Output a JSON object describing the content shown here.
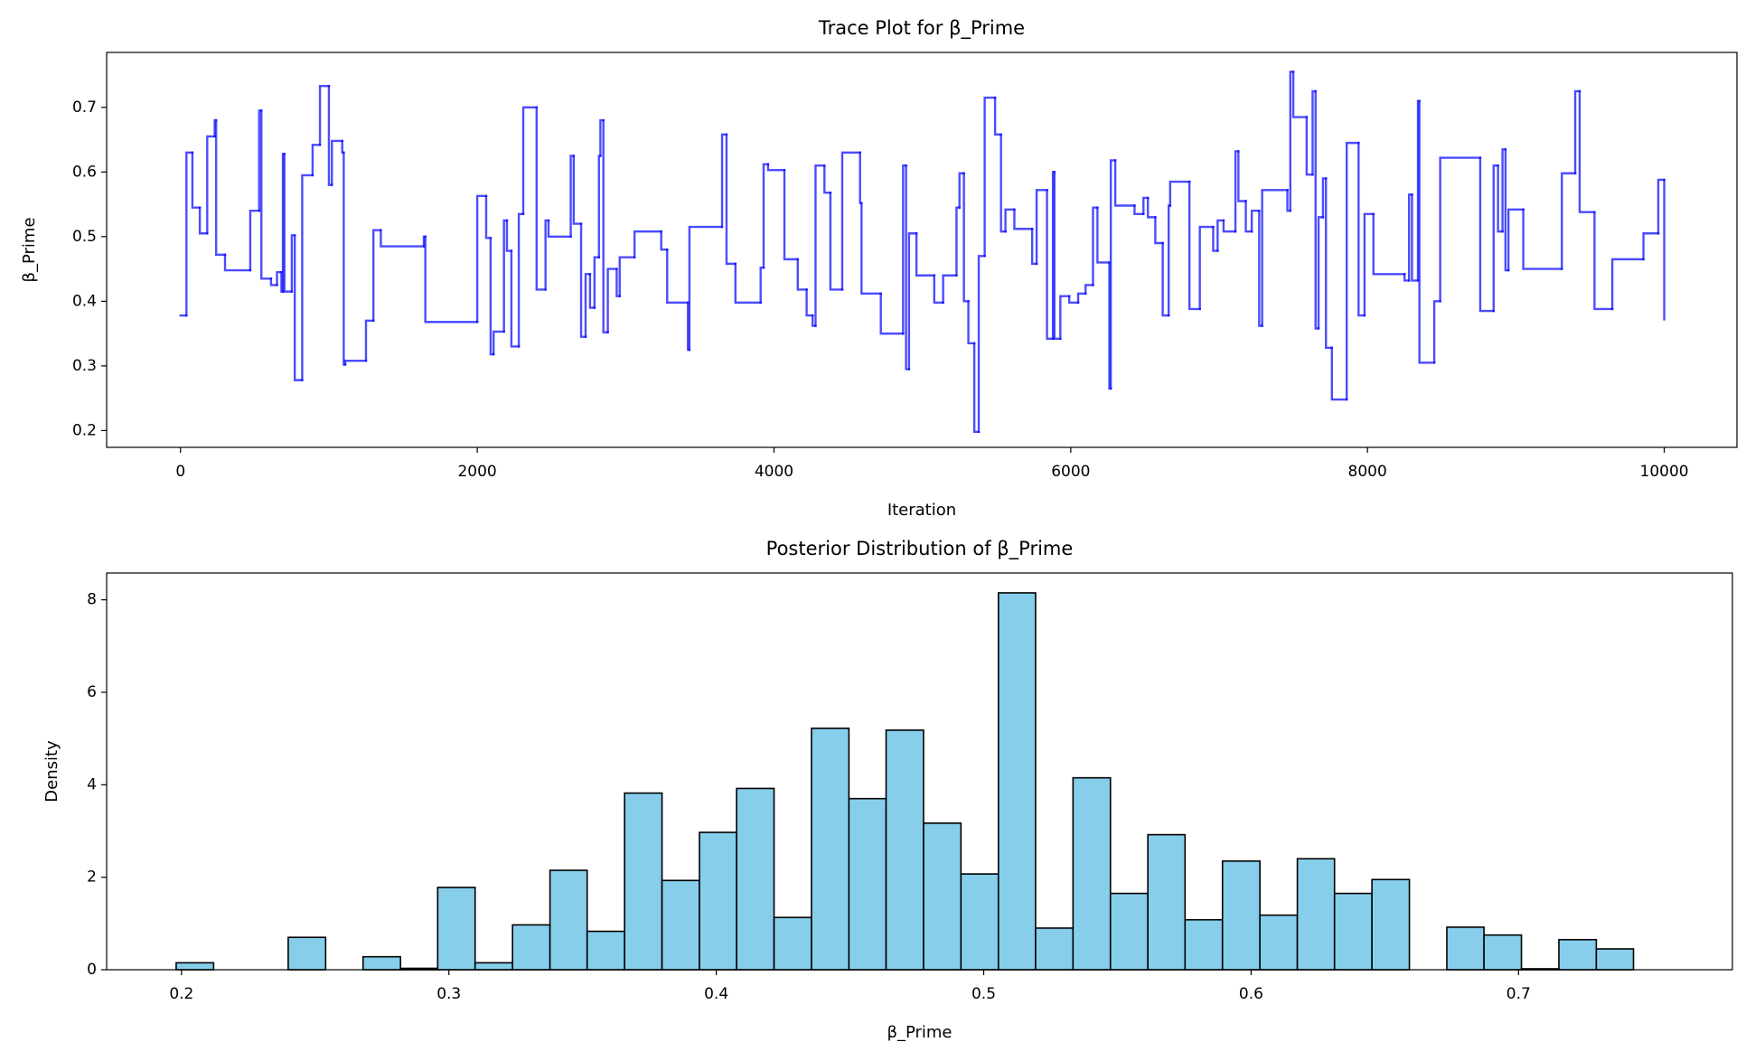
{
  "chart_data": [
    {
      "type": "line",
      "title": "Trace Plot for β_Prime",
      "xlabel": "Iteration",
      "ylabel": "β_Prime",
      "drawstyle": "steps-post",
      "color": "#0000ff",
      "alpha": 0.7,
      "xlim": [
        -498,
        10490
      ],
      "ylim": [
        0.174,
        0.785
      ],
      "xticks": [
        0,
        2000,
        4000,
        6000,
        8000,
        10000
      ],
      "yticks": [
        0.2,
        0.3,
        0.4,
        0.5,
        0.6,
        0.7
      ],
      "x": [
        0,
        40,
        80,
        130,
        180,
        230,
        240,
        300,
        470,
        530,
        545,
        610,
        650,
        680,
        690,
        700,
        750,
        770,
        820,
        890,
        940,
        1000,
        1020,
        1090,
        1100,
        1110,
        1250,
        1300,
        1350,
        1640,
        1650,
        2000,
        2060,
        2090,
        2110,
        2180,
        2200,
        2230,
        2280,
        2310,
        2400,
        2460,
        2480,
        2630,
        2650,
        2700,
        2730,
        2760,
        2790,
        2820,
        2830,
        2850,
        2880,
        2940,
        2960,
        3060,
        3240,
        3280,
        3420,
        3430,
        3650,
        3680,
        3740,
        3910,
        3930,
        3960,
        4070,
        4160,
        4220,
        4260,
        4280,
        4340,
        4380,
        4460,
        4580,
        4590,
        4720,
        4870,
        4890,
        4910,
        4960,
        5080,
        5140,
        5230,
        5250,
        5280,
        5310,
        5350,
        5380,
        5420,
        5490,
        5530,
        5560,
        5620,
        5740,
        5770,
        5840,
        5880,
        5890,
        5930,
        5990,
        6050,
        6100,
        6150,
        6180,
        6260,
        6270,
        6300,
        6430,
        6490,
        6520,
        6570,
        6620,
        6660,
        6670,
        6800,
        6870,
        6960,
        6990,
        7030,
        7110,
        7130,
        7180,
        7220,
        7270,
        7290,
        7460,
        7480,
        7500,
        7590,
        7630,
        7650,
        7670,
        7700,
        7720,
        7760,
        7860,
        7940,
        7980,
        8040,
        8250,
        8280,
        8300,
        8340,
        8350,
        8450,
        8490,
        8760,
        8850,
        8880,
        8910,
        8930,
        8950,
        9050,
        9310,
        9400,
        9430,
        9530,
        9650,
        9860,
        9960,
        10000
      ],
      "values": [
        0.378,
        0.63,
        0.545,
        0.505,
        0.655,
        0.68,
        0.472,
        0.448,
        0.54,
        0.695,
        0.435,
        0.425,
        0.445,
        0.415,
        0.628,
        0.415,
        0.502,
        0.278,
        0.595,
        0.642,
        0.733,
        0.58,
        0.648,
        0.63,
        0.302,
        0.308,
        0.37,
        0.51,
        0.485,
        0.5,
        0.368,
        0.563,
        0.498,
        0.318,
        0.353,
        0.525,
        0.478,
        0.33,
        0.535,
        0.7,
        0.418,
        0.525,
        0.5,
        0.625,
        0.52,
        0.345,
        0.442,
        0.39,
        0.468,
        0.625,
        0.68,
        0.352,
        0.45,
        0.408,
        0.468,
        0.508,
        0.48,
        0.398,
        0.325,
        0.515,
        0.658,
        0.458,
        0.398,
        0.452,
        0.612,
        0.603,
        0.465,
        0.418,
        0.378,
        0.362,
        0.61,
        0.568,
        0.418,
        0.63,
        0.552,
        0.412,
        0.35,
        0.61,
        0.295,
        0.505,
        0.44,
        0.398,
        0.44,
        0.545,
        0.598,
        0.4,
        0.335,
        0.198,
        0.47,
        0.715,
        0.658,
        0.508,
        0.542,
        0.512,
        0.458,
        0.572,
        0.342,
        0.6,
        0.342,
        0.408,
        0.398,
        0.412,
        0.425,
        0.545,
        0.46,
        0.265,
        0.618,
        0.548,
        0.535,
        0.56,
        0.53,
        0.49,
        0.378,
        0.548,
        0.585,
        0.388,
        0.515,
        0.478,
        0.525,
        0.508,
        0.632,
        0.555,
        0.508,
        0.54,
        0.362,
        0.572,
        0.54,
        0.755,
        0.685,
        0.596,
        0.725,
        0.358,
        0.53,
        0.59,
        0.328,
        0.248,
        0.645,
        0.378,
        0.535,
        0.442,
        0.432,
        0.565,
        0.432,
        0.71,
        0.305,
        0.4,
        0.622,
        0.385,
        0.61,
        0.508,
        0.635,
        0.448,
        0.542,
        0.45,
        0.598,
        0.725,
        0.538,
        0.388,
        0.465,
        0.505,
        0.588,
        0.372
      ]
    },
    {
      "type": "histogram",
      "title": "Posterior Distribution of β_Prime",
      "xlabel": "β_Prime",
      "ylabel": "Density",
      "color": "#87ceeb",
      "edgecolor": "#000000",
      "xlim": [
        0.172,
        0.78
      ],
      "ylim": [
        0,
        8.58
      ],
      "xticks": [
        0.2,
        0.3,
        0.4,
        0.5,
        0.6,
        0.7
      ],
      "yticks": [
        0,
        2,
        4,
        6,
        8
      ],
      "bins": [
        0.198,
        0.212,
        0.226,
        0.2399,
        0.2539,
        0.2679,
        0.2819,
        0.2958,
        0.3098,
        0.3238,
        0.3378,
        0.3517,
        0.3657,
        0.3797,
        0.3937,
        0.4076,
        0.4216,
        0.4356,
        0.4496,
        0.4635,
        0.4775,
        0.4915,
        0.5055,
        0.5194,
        0.5334,
        0.5474,
        0.5614,
        0.5753,
        0.5893,
        0.6033,
        0.6173,
        0.6312,
        0.6452,
        0.6592,
        0.6732,
        0.6871,
        0.7011,
        0.7151,
        0.7291,
        0.743,
        0.757
      ],
      "values": [
        0.15,
        0,
        0,
        0.7,
        0,
        0.28,
        0.03,
        1.78,
        0.15,
        0.97,
        2.15,
        0.83,
        3.82,
        1.93,
        2.97,
        3.92,
        1.13,
        5.22,
        3.7,
        5.18,
        3.17,
        2.07,
        8.15,
        0.9,
        4.15,
        1.65,
        2.92,
        1.08,
        2.35,
        1.18,
        2.4,
        1.65,
        1.95,
        0,
        0.92,
        0.75,
        0.02,
        0.65,
        0.45,
        0
      ]
    }
  ]
}
